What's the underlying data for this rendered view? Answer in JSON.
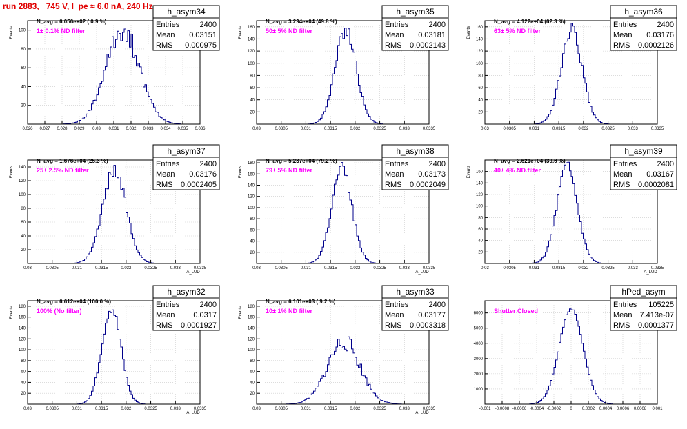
{
  "header": {
    "title": "run 2883,   745 V, I_pe ≈ 6.0 nA, 240 Hz"
  },
  "stat_labels": {
    "entries": "Entries",
    "mean": "Mean",
    "rms": "RMS"
  },
  "colors": {
    "histogram": "#00008b",
    "note": "#ff00ff",
    "title": "#e00000"
  },
  "chart_data": [
    {
      "type": "histogram",
      "name": "h_asym34",
      "navg": "N_avg = 6.056e+02 ( 0.9 %)",
      "note": "1± 0.1% ND filter",
      "entries": "2400",
      "mean": "0.03151",
      "rms": "0.000975",
      "center": 0.03151,
      "sigma": 0.000975,
      "nbins": 100,
      "peak": 100,
      "noise": 0.12,
      "seed": 34,
      "xlim": [
        0.026,
        0.036
      ],
      "ylim": [
        0,
        110
      ],
      "ylabel": "Events",
      "xlabel": "",
      "xticks": [
        "0.026",
        "0.027",
        "0.028",
        "0.029",
        "0.03",
        "0.031",
        "0.032",
        "0.033",
        "0.034",
        "0.035",
        "0.036"
      ],
      "yticks": [
        20,
        40,
        60,
        80,
        100
      ]
    },
    {
      "type": "histogram",
      "name": "h_asym35",
      "navg": "N_avg = 3.294e+04 (49.8 %)",
      "note": "50± 5% ND filter",
      "entries": "2400",
      "mean": "0.03181",
      "rms": "0.0002143",
      "center": 0.03181,
      "sigma": 0.0002143,
      "nbins": 100,
      "peak": 155,
      "noise": 0.08,
      "seed": 35,
      "xlim": [
        0.03,
        0.0335
      ],
      "ylim": [
        0,
        170
      ],
      "ylabel": "Events",
      "xlabel": "",
      "xticks": [
        "0.03",
        "0.0305",
        "0.031",
        "0.0315",
        "0.032",
        "0.0325",
        "0.033",
        "0.0335"
      ],
      "yticks": [
        20,
        40,
        60,
        80,
        100,
        120,
        140,
        160
      ]
    },
    {
      "type": "histogram",
      "name": "h_asym36",
      "navg": "N_avg = 4.122e+04 (62.3 %)",
      "note": "63± 5% ND filter",
      "entries": "2400",
      "mean": "0.03176",
      "rms": "0.0002126",
      "center": 0.03176,
      "sigma": 0.0002126,
      "nbins": 100,
      "peak": 155,
      "noise": 0.08,
      "seed": 36,
      "xlim": [
        0.03,
        0.0335
      ],
      "ylim": [
        0,
        170
      ],
      "ylabel": "Events",
      "xlabel": "",
      "xticks": [
        "0.03",
        "0.0305",
        "0.031",
        "0.0315",
        "0.032",
        "0.0325",
        "0.033",
        "0.0335"
      ],
      "yticks": [
        20,
        40,
        60,
        80,
        100,
        120,
        140,
        160
      ]
    },
    {
      "type": "histogram",
      "name": "h_asym37",
      "navg": "N_avg = 1.676e+04 (25.3 %)",
      "note": "25± 2.5% ND filter",
      "entries": "2400",
      "mean": "0.03176",
      "rms": "0.0002405",
      "center": 0.03176,
      "sigma": 0.0002405,
      "nbins": 100,
      "peak": 135,
      "noise": 0.08,
      "seed": 37,
      "xlim": [
        0.03,
        0.0335
      ],
      "ylim": [
        0,
        150
      ],
      "ylabel": "Events",
      "xlabel": "A_LUD",
      "xticks": [
        "0.03",
        "0.0305",
        "0.031",
        "0.0315",
        "0.032",
        "0.0325",
        "0.033",
        "0.0335"
      ],
      "yticks": [
        20,
        40,
        60,
        80,
        100,
        120,
        140
      ]
    },
    {
      "type": "histogram",
      "name": "h_asym38",
      "navg": "N_avg = 5.237e+04 (79.2 %)",
      "note": "79± 5% ND filter",
      "entries": "2400",
      "mean": "0.03173",
      "rms": "0.0002049",
      "center": 0.03173,
      "sigma": 0.0002049,
      "nbins": 100,
      "peak": 170,
      "noise": 0.08,
      "seed": 38,
      "xlim": [
        0.03,
        0.0335
      ],
      "ylim": [
        0,
        185
      ],
      "ylabel": "Events",
      "xlabel": "A_LUD",
      "xticks": [
        "0.03",
        "0.0305",
        "0.031",
        "0.0315",
        "0.032",
        "0.0325",
        "0.033",
        "0.0335"
      ],
      "yticks": [
        20,
        40,
        60,
        80,
        100,
        120,
        140,
        160,
        180
      ]
    },
    {
      "type": "histogram",
      "name": "h_asym39",
      "navg": "N_avg = 2.621e+04 (39.6 %)",
      "note": "40± 4% ND filter",
      "entries": "2400",
      "mean": "0.03167",
      "rms": "0.0002081",
      "center": 0.03167,
      "sigma": 0.0002081,
      "nbins": 100,
      "peak": 165,
      "noise": 0.08,
      "seed": 39,
      "xlim": [
        0.03,
        0.0335
      ],
      "ylim": [
        0,
        180
      ],
      "ylabel": "Events",
      "xlabel": "A_LUD",
      "xticks": [
        "0.03",
        "0.0305",
        "0.031",
        "0.0315",
        "0.032",
        "0.0325",
        "0.033",
        "0.0335"
      ],
      "yticks": [
        20,
        40,
        60,
        80,
        100,
        120,
        140,
        160
      ]
    },
    {
      "type": "histogram",
      "name": "h_asym32",
      "navg": "N_avg = 6.612e+04 (100.0 %)",
      "note": "100% (No filter)",
      "entries": "2400",
      "mean": "0.0317",
      "rms": "0.0001927",
      "center": 0.0317,
      "sigma": 0.0001927,
      "nbins": 100,
      "peak": 178,
      "noise": 0.07,
      "seed": 32,
      "xlim": [
        0.03,
        0.0335
      ],
      "ylim": [
        0,
        190
      ],
      "ylabel": "Events",
      "xlabel": "A_LUD",
      "xticks": [
        "0.03",
        "0.0305",
        "0.031",
        "0.0315",
        "0.032",
        "0.0325",
        "0.033",
        "0.0335"
      ],
      "yticks": [
        20,
        40,
        60,
        80,
        100,
        120,
        140,
        160,
        180
      ]
    },
    {
      "type": "histogram",
      "name": "h_asym33",
      "navg": "N_avg = 6.101e+03 ( 9.2 %)",
      "note": "10± 1% ND filter",
      "entries": "2400",
      "mean": "0.03177",
      "rms": "0.0003318",
      "center": 0.03177,
      "sigma": 0.0003318,
      "nbins": 100,
      "peak": 115,
      "noise": 0.14,
      "seed": 33,
      "xlim": [
        0.03,
        0.0335
      ],
      "ylim": [
        0,
        190
      ],
      "ylabel": "Events",
      "xlabel": "A_LUD",
      "xticks": [
        "0.03",
        "0.0305",
        "0.031",
        "0.0315",
        "0.032",
        "0.0325",
        "0.033",
        "0.0335"
      ],
      "yticks": [
        20,
        40,
        60,
        80,
        100,
        120,
        140,
        160,
        180
      ]
    },
    {
      "type": "histogram",
      "name": "hPed_asym",
      "navg": "",
      "note": "Shutter Closed",
      "entries": "105225",
      "mean": "7.413e-07",
      "rms": "0.0001377",
      "center": 0.0,
      "sigma": 0.0001377,
      "nbins": 100,
      "peak": 6300,
      "noise": 0.015,
      "seed": 99,
      "xlim": [
        -0.001,
        0.001
      ],
      "ylim": [
        0,
        6800
      ],
      "ylabel": "",
      "xlabel": "",
      "xticks": [
        "-0.001",
        "-0.0008",
        "-0.0006",
        "-0.0004",
        "-0.0002",
        "0",
        "0.0002",
        "0.0004",
        "0.0006",
        "0.0008",
        "0.001"
      ],
      "yticks": [
        1000,
        2000,
        3000,
        4000,
        5000,
        6000
      ]
    }
  ]
}
